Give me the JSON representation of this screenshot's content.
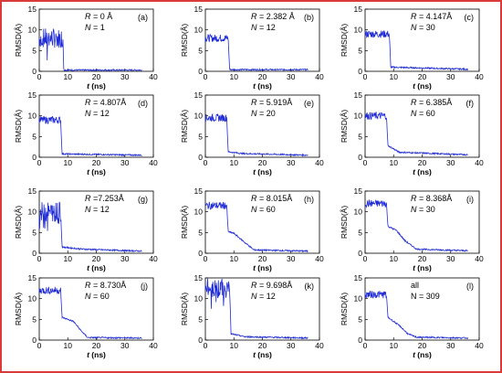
{
  "figure": {
    "border_color": "#d93a3a"
  },
  "common": {
    "ylabel": "RMSD(Å)",
    "xlabel_var": "t",
    "xlabel_unit": " (ns)",
    "x_ticks": [
      "0",
      "10",
      "20",
      "30",
      "40"
    ],
    "xlim": [
      0,
      40
    ],
    "series_color": "#1f2bd6"
  },
  "chart_data": [
    {
      "type": "line",
      "id": "a",
      "panel_label": "(a)",
      "annotation": {
        "r_text": " = 0 Å",
        "n_text": " = 1",
        "r_var": "R",
        "n_var": "N"
      },
      "ylim": [
        0,
        15
      ],
      "y_ticks": [
        "0",
        "5",
        "10",
        "15"
      ],
      "pattern": "noisy",
      "plateau": 8,
      "drop_at": 8.3,
      "shoulder": null,
      "tail": 0.3,
      "x_end": 36,
      "profile": [
        [
          0,
          8
        ],
        [
          8.3,
          8
        ],
        [
          8.6,
          0.3
        ],
        [
          36,
          0.3
        ]
      ]
    },
    {
      "type": "line",
      "id": "b",
      "panel_label": "(b)",
      "annotation": {
        "r_text": " = 2.382 Å",
        "n_text": " = 12",
        "r_var": "R",
        "n_var": "N"
      },
      "ylim": [
        0,
        15
      ],
      "y_ticks": [
        "0",
        "5",
        "10",
        "15"
      ],
      "pattern": "step",
      "plateau": 8,
      "drop_at": 8.0,
      "shoulder": null,
      "tail": 0.4,
      "x_end": 36,
      "profile": [
        [
          0,
          8
        ],
        [
          8.0,
          8
        ],
        [
          8.5,
          0.4
        ],
        [
          36,
          0.4
        ]
      ]
    },
    {
      "type": "line",
      "id": "c",
      "panel_label": "(c)",
      "annotation": {
        "r_text": " = 4.147Å",
        "n_text": " = 30",
        "r_var": "R",
        "n_var": "N"
      },
      "ylim": [
        0,
        15
      ],
      "y_ticks": [
        "0",
        "5",
        "10",
        "15"
      ],
      "pattern": "step",
      "plateau": 9,
      "drop_at": 8.5,
      "shoulder": null,
      "tail": 0.6,
      "x_end": 36,
      "profile": [
        [
          0,
          9
        ],
        [
          8.5,
          9
        ],
        [
          9.0,
          1.0
        ],
        [
          36,
          0.5
        ]
      ]
    },
    {
      "type": "line",
      "id": "d",
      "panel_label": "(d)",
      "annotation": {
        "r_text": " = 4.807Å",
        "n_text": " = 12",
        "r_var": "R",
        "n_var": "N"
      },
      "ylim": [
        0,
        15
      ],
      "y_ticks": [
        "0",
        "5",
        "10",
        "15"
      ],
      "pattern": "step",
      "plateau": 9,
      "drop_at": 7.5,
      "shoulder": null,
      "tail": 0.5,
      "x_end": 36,
      "profile": [
        [
          0,
          9
        ],
        [
          7.5,
          9
        ],
        [
          8.0,
          0.8
        ],
        [
          36,
          0.5
        ]
      ]
    },
    {
      "type": "line",
      "id": "e",
      "panel_label": "(e)",
      "annotation": {
        "r_text": " = 5.919Å",
        "n_text": " = 20",
        "r_var": "R",
        "n_var": "N"
      },
      "ylim": [
        0,
        15
      ],
      "y_ticks": [
        "0",
        "5",
        "10",
        "15"
      ],
      "pattern": "step",
      "plateau": 9.5,
      "drop_at": 7.5,
      "shoulder": null,
      "tail": 0.6,
      "x_end": 36,
      "profile": [
        [
          0,
          9.5
        ],
        [
          7.5,
          9.5
        ],
        [
          8.0,
          1.3
        ],
        [
          13,
          0.9
        ],
        [
          36,
          0.5
        ]
      ]
    },
    {
      "type": "line",
      "id": "f",
      "panel_label": "(f)",
      "annotation": {
        "r_text": " = 6.385Å",
        "n_text": " = 60",
        "r_var": "R",
        "n_var": "N"
      },
      "ylim": [
        0,
        15
      ],
      "y_ticks": [
        "0",
        "5",
        "10",
        "15"
      ],
      "pattern": "step",
      "plateau": 10,
      "drop_at": 7.5,
      "shoulder": null,
      "tail": 0.7,
      "x_end": 36,
      "profile": [
        [
          0,
          10
        ],
        [
          7.5,
          10
        ],
        [
          8.0,
          2.8
        ],
        [
          12,
          1.2
        ],
        [
          36,
          0.6
        ]
      ]
    },
    {
      "type": "line",
      "id": "g",
      "panel_label": "(g)",
      "annotation": {
        "r_text": " =7.253Å",
        "n_text": " = 12",
        "r_var": "R",
        "n_var": "N"
      },
      "ylim": [
        0,
        15
      ],
      "y_ticks": [
        "0",
        "5",
        "10",
        "15"
      ],
      "pattern": "noisy",
      "plateau": 10,
      "drop_at": 7.5,
      "shoulder": null,
      "tail": 0.6,
      "x_end": 36,
      "profile": [
        [
          0,
          10
        ],
        [
          7.5,
          10
        ],
        [
          8.0,
          1.5
        ],
        [
          15,
          1.0
        ],
        [
          36,
          0.5
        ]
      ]
    },
    {
      "type": "line",
      "id": "h",
      "panel_label": "(h)",
      "annotation": {
        "r_text": " = 8.015Å",
        "n_text": " = 60",
        "r_var": "R",
        "n_var": "N"
      },
      "ylim": [
        0,
        15
      ],
      "y_ticks": [
        "0",
        "5",
        "10",
        "15"
      ],
      "pattern": "step",
      "plateau": 11.5,
      "drop_at": 7.5,
      "shoulder": 5,
      "tail": 0.5,
      "x_end": 36,
      "profile": [
        [
          0,
          11.5
        ],
        [
          7.5,
          11.5
        ],
        [
          8.0,
          5.2
        ],
        [
          10,
          4.8
        ],
        [
          14,
          2.5
        ],
        [
          17,
          0.8
        ],
        [
          36,
          0.5
        ]
      ]
    },
    {
      "type": "line",
      "id": "i",
      "panel_label": "(i)",
      "annotation": {
        "r_text": " = 8.368Å",
        "n_text": " = 30",
        "r_var": "R",
        "n_var": "N"
      },
      "ylim": [
        0,
        15
      ],
      "y_ticks": [
        "0",
        "5",
        "10",
        "15"
      ],
      "pattern": "step",
      "plateau": 12,
      "drop_at": 7.5,
      "shoulder": 6,
      "tail": 0.6,
      "x_end": 36,
      "profile": [
        [
          0,
          12
        ],
        [
          7.5,
          12
        ],
        [
          8.0,
          6.5
        ],
        [
          11,
          5.5
        ],
        [
          14,
          3.0
        ],
        [
          18,
          1.0
        ],
        [
          36,
          0.6
        ]
      ]
    },
    {
      "type": "line",
      "id": "j",
      "panel_label": "(j)",
      "annotation": {
        "r_text": " = 8.730Å",
        "n_text": " = 60",
        "r_var": "R",
        "n_var": "N"
      },
      "ylim": [
        0,
        15
      ],
      "y_ticks": [
        "0",
        "5",
        "10",
        "15"
      ],
      "pattern": "step",
      "plateau": 12,
      "drop_at": 7.5,
      "shoulder": 5.5,
      "tail": 0.6,
      "x_end": 36,
      "profile": [
        [
          0,
          12
        ],
        [
          7.5,
          12
        ],
        [
          8.0,
          5.5
        ],
        [
          12,
          4.5
        ],
        [
          15,
          2.0
        ],
        [
          17,
          0.6
        ],
        [
          36,
          0.5
        ]
      ]
    },
    {
      "type": "line",
      "id": "k",
      "panel_label": "(k)",
      "annotation": {
        "r_text": " = 9.698Å",
        "n_text": " = 12",
        "r_var": "R",
        "n_var": "N"
      },
      "ylim": [
        0,
        15
      ],
      "y_ticks": [
        "0",
        "5",
        "10",
        "15"
      ],
      "pattern": "noisy",
      "plateau": 12.5,
      "drop_at": 8.5,
      "shoulder": null,
      "tail": 0.6,
      "x_end": 36,
      "profile": [
        [
          0,
          12.5
        ],
        [
          8.5,
          12.5
        ],
        [
          9.0,
          1.5
        ],
        [
          14,
          0.8
        ],
        [
          36,
          0.5
        ]
      ]
    },
    {
      "type": "line",
      "id": "l",
      "panel_label": "(l)",
      "annotation": {
        "r_text": "all",
        "n_text": "N = 309",
        "r_var": "",
        "n_var": ""
      },
      "ylim": [
        0,
        15
      ],
      "y_ticks": [
        "0",
        "5",
        "10",
        "15"
      ],
      "pattern": "step",
      "plateau": 11,
      "drop_at": 7.5,
      "shoulder": 5,
      "tail": 0.5,
      "x_end": 36,
      "profile": [
        [
          0,
          11
        ],
        [
          7.5,
          11
        ],
        [
          8.0,
          5.5
        ],
        [
          12,
          3.5
        ],
        [
          15,
          1.5
        ],
        [
          18,
          0.7
        ],
        [
          36,
          0.5
        ]
      ]
    }
  ]
}
